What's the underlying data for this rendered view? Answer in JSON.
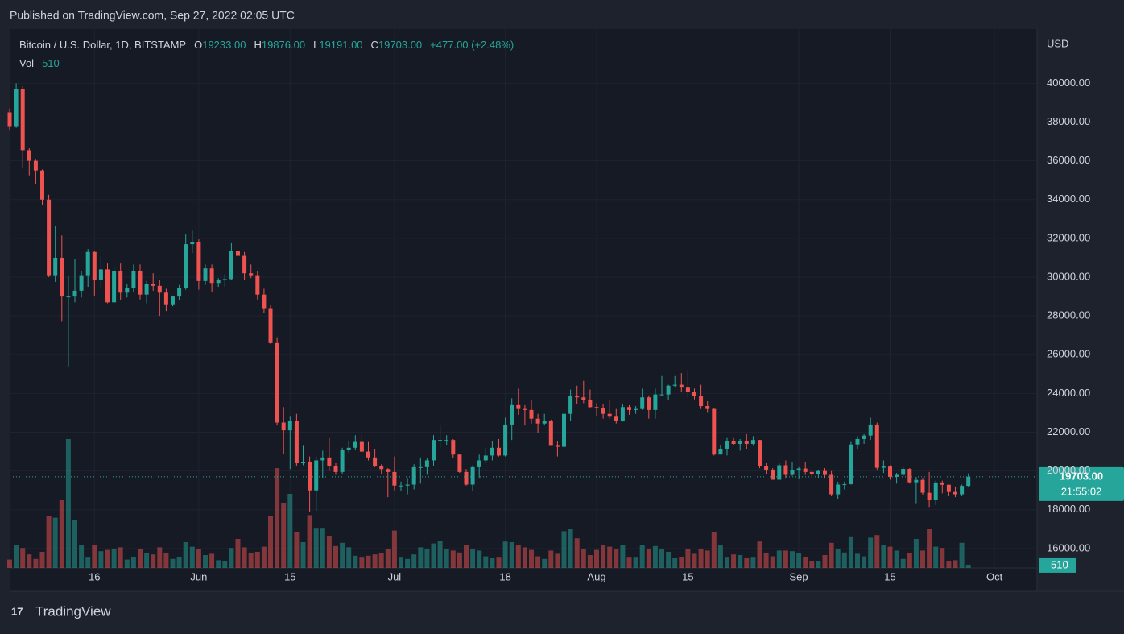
{
  "header": {
    "published": "Published on TradingView.com, Sep 27, 2022 02:05 UTC",
    "symbol": "Bitcoin / U.S. Dollar, 1D, BITSTAMP",
    "open_label": "O",
    "open": "19233.00",
    "high_label": "H",
    "high": "19876.00",
    "low_label": "L",
    "low": "19191.00",
    "close_label": "C",
    "close": "19703.00",
    "change": "+477.00 (+2.48%)",
    "vol_label": "Vol",
    "vol": "510"
  },
  "axis": {
    "currency": "USD",
    "price_tag": "19703.00",
    "countdown": "21:55:02",
    "volume_tag": "510"
  },
  "footer": {
    "brand": "TradingView"
  },
  "chart_data": {
    "type": "candlestick",
    "categories": [
      null,
      null,
      null,
      null,
      null,
      null,
      null,
      null,
      null,
      null,
      null,
      null,
      null,
      "16",
      null,
      null,
      null,
      null,
      null,
      null,
      null,
      null,
      null,
      null,
      null,
      null,
      null,
      null,
      null,
      "Jun",
      null,
      null,
      null,
      null,
      null,
      null,
      null,
      null,
      null,
      null,
      null,
      null,
      null,
      "15",
      null,
      null,
      null,
      null,
      null,
      null,
      null,
      null,
      null,
      null,
      null,
      null,
      null,
      null,
      null,
      "Jul",
      null,
      null,
      null,
      null,
      null,
      null,
      null,
      null,
      null,
      null,
      null,
      null,
      null,
      null,
      null,
      null,
      "18",
      null,
      null,
      null,
      null,
      null,
      null,
      null,
      null,
      null,
      null,
      null,
      null,
      null,
      "Aug",
      null,
      null,
      null,
      null,
      null,
      null,
      null,
      null,
      null,
      null,
      null,
      null,
      null,
      "15",
      null,
      null,
      null,
      null,
      null,
      null,
      null,
      null,
      null,
      null,
      null,
      null,
      null,
      null,
      null,
      null,
      "Sep",
      null,
      null,
      null,
      null,
      null,
      null,
      null,
      null,
      null,
      null,
      null,
      null,
      null,
      "15",
      null,
      null,
      null,
      null,
      null,
      null,
      null,
      null,
      null,
      null,
      null,
      null,
      null,
      null,
      null,
      "Oct"
    ],
    "open": [
      38500,
      37750,
      39700,
      36550,
      36000,
      35500,
      34000,
      30100,
      31000,
      29000,
      29000,
      29300,
      30100,
      31300,
      29850,
      30400,
      28700,
      30300,
      29200,
      29450,
      30300,
      29100,
      29650,
      29550,
      29200,
      28600,
      29000,
      29450,
      31700,
      31800,
      29800,
      30450,
      29700,
      29850,
      29900,
      31350,
      31100,
      30200,
      30100,
      29100,
      28400,
      26600,
      22500,
      22100,
      22600,
      20400,
      20450,
      19000,
      20550,
      20700,
      20250,
      19950,
      21100,
      21200,
      21500,
      21000,
      20700,
      20250,
      20100,
      19950,
      19250,
      19250,
      19300,
      20200,
      20200,
      20550,
      21600,
      21600,
      21600,
      20850,
      19950,
      19300,
      20200,
      20550,
      20800,
      21200,
      20800,
      22400,
      23400,
      23200,
      23150,
      22700,
      22450,
      22600,
      21300,
      21250,
      22950,
      23850,
      23800,
      23650,
      23300,
      23250,
      22950,
      22800,
      22600,
      23300,
      23150,
      23200,
      23800,
      23150,
      23950,
      23950,
      24400,
      24450,
      24300,
      24100,
      23850,
      23350,
      23200,
      20850,
      21150,
      21550,
      21400,
      21550,
      21400,
      21600,
      20250,
      20050,
      19550,
      20300,
      19800,
      20050,
      20130,
      19950,
      19830,
      20000,
      19800,
      18800,
      19300,
      19320,
      21370,
      21650,
      21830,
      22400,
      20170,
      20230,
      19700,
      19800,
      20110,
      19420,
      19540,
      18880,
      18490,
      19410,
      19290,
      18920,
      18800,
      19233,
      null,
      null,
      null,
      null
    ],
    "high": [
      38700,
      40000,
      39850,
      36650,
      36100,
      35550,
      34250,
      32650,
      32150,
      30050,
      30950,
      30300,
      31450,
      31350,
      31050,
      30700,
      30550,
      30700,
      29650,
      30650,
      30650,
      29800,
      30200,
      29850,
      29400,
      29050,
      29600,
      32200,
      32400,
      31950,
      30650,
      30650,
      29950,
      30150,
      31750,
      31550,
      31300,
      30650,
      30300,
      29400,
      28550,
      26900,
      23300,
      22800,
      22950,
      21300,
      20750,
      20750,
      21050,
      21700,
      20400,
      21200,
      21550,
      21850,
      21850,
      21500,
      21150,
      20350,
      20150,
      20750,
      19450,
      19650,
      20350,
      20700,
      20650,
      21850,
      22350,
      21850,
      21650,
      20850,
      20100,
      20300,
      20850,
      21200,
      21550,
      21650,
      22750,
      23750,
      24250,
      23400,
      23650,
      22950,
      22950,
      22650,
      21550,
      23100,
      24200,
      24400,
      24650,
      24200,
      23500,
      23450,
      23650,
      23200,
      23450,
      23400,
      23350,
      24250,
      23900,
      24250,
      24900,
      24450,
      24900,
      25050,
      25200,
      24250,
      24450,
      23600,
      23250,
      21350,
      21700,
      21700,
      21650,
      21900,
      21800,
      21600,
      20400,
      20150,
      20400,
      20550,
      20450,
      20200,
      20450,
      20000,
      20050,
      20150,
      20000,
      19450,
      19450,
      21500,
      21800,
      21900,
      22750,
      22500,
      20550,
      20300,
      19900,
      20200,
      20150,
      19700,
      19650,
      19950,
      19500,
      19500,
      19300,
      19200,
      19300,
      19876,
      null,
      null,
      null,
      null
    ],
    "low": [
      37600,
      37700,
      35600,
      35250,
      34800,
      33700,
      30000,
      29750,
      27700,
      25400,
      28700,
      28950,
      29500,
      29050,
      29450,
      28650,
      28650,
      28800,
      28950,
      29250,
      28850,
      28650,
      29300,
      28000,
      28250,
      28500,
      28800,
      29350,
      31250,
      29350,
      29600,
      29250,
      29500,
      29500,
      29850,
      29250,
      29850,
      29950,
      28850,
      28150,
      26550,
      22350,
      20900,
      20100,
      20250,
      20300,
      17900,
      17950,
      19650,
      20000,
      19800,
      19850,
      20950,
      21100,
      20950,
      20550,
      20200,
      19850,
      18650,
      19000,
      18950,
      18800,
      19050,
      19350,
      19800,
      20250,
      21200,
      21350,
      20650,
      19900,
      19250,
      18950,
      19650,
      20400,
      20550,
      20750,
      20750,
      21600,
      22900,
      22350,
      22450,
      21950,
      22350,
      21300,
      20750,
      21050,
      22600,
      23450,
      23500,
      23250,
      22850,
      22700,
      22700,
      22450,
      22550,
      22900,
      22950,
      23150,
      22700,
      22700,
      23900,
      23650,
      24300,
      24100,
      23800,
      23700,
      23200,
      23000,
      20800,
      20850,
      20800,
      21350,
      21050,
      21150,
      21300,
      20150,
      19850,
      19550,
      19550,
      19650,
      19750,
      19600,
      19800,
      19650,
      19650,
      19650,
      18700,
      18550,
      19050,
      19300,
      21150,
      21400,
      21600,
      20050,
      19900,
      19550,
      19350,
      19750,
      19350,
      18300,
      18750,
      18150,
      18250,
      18850,
      18700,
      18650,
      18700,
      19191,
      null,
      null,
      null,
      null
    ],
    "close": [
      37750,
      39700,
      36550,
      36000,
      35500,
      34000,
      30100,
      31000,
      29000,
      29000,
      29300,
      30100,
      31300,
      29850,
      30400,
      28700,
      30300,
      29200,
      29450,
      30300,
      29100,
      29650,
      29550,
      29200,
      28600,
      29000,
      29450,
      31700,
      31800,
      29800,
      30450,
      29700,
      29850,
      29900,
      31350,
      31100,
      30200,
      30100,
      29100,
      28400,
      26600,
      22500,
      22100,
      22600,
      20400,
      20450,
      19000,
      20550,
      20700,
      20250,
      19950,
      21100,
      21200,
      21500,
      21000,
      20700,
      20250,
      20100,
      19950,
      19250,
      19250,
      19300,
      20200,
      20200,
      20550,
      21600,
      21600,
      21600,
      20850,
      19950,
      19300,
      20200,
      20550,
      20800,
      21200,
      20800,
      22400,
      23400,
      23200,
      23150,
      22700,
      22450,
      22600,
      21300,
      21250,
      22950,
      23850,
      23800,
      23650,
      23300,
      23250,
      22950,
      22800,
      22600,
      23300,
      23150,
      23200,
      23800,
      23150,
      23950,
      23950,
      24400,
      24450,
      24300,
      24100,
      23850,
      23350,
      23200,
      20850,
      21150,
      21550,
      21400,
      21550,
      21400,
      21600,
      20250,
      20050,
      19550,
      20300,
      19800,
      20050,
      20130,
      19950,
      19830,
      20000,
      19800,
      18800,
      19300,
      19320,
      21370,
      21650,
      21830,
      22400,
      20170,
      20230,
      19700,
      19800,
      20110,
      19420,
      19540,
      18880,
      18490,
      19410,
      19290,
      18920,
      18800,
      19233,
      19703,
      null,
      null,
      null,
      null
    ],
    "volume": [
      1300,
      3500,
      3100,
      2100,
      1400,
      2500,
      8000,
      7800,
      10500,
      20000,
      7500,
      3500,
      1600,
      3500,
      2600,
      2800,
      3000,
      3200,
      1300,
      1700,
      3000,
      2300,
      2100,
      3200,
      2300,
      1400,
      1700,
      4000,
      3300,
      3000,
      2000,
      2200,
      1200,
      1100,
      3100,
      4500,
      3200,
      2300,
      2500,
      3300,
      8000,
      15500,
      10000,
      11500,
      5600,
      4000,
      8200,
      6100,
      6100,
      5000,
      3400,
      3900,
      3200,
      1900,
      1600,
      1900,
      2100,
      2300,
      2900,
      5800,
      1600,
      1400,
      2100,
      3200,
      3000,
      3800,
      4200,
      3000,
      2700,
      2400,
      3600,
      3000,
      2700,
      1800,
      1500,
      1600,
      4100,
      4000,
      3500,
      3200,
      2800,
      1800,
      1400,
      2700,
      2200,
      5700,
      6000,
      4600,
      3000,
      2000,
      2800,
      3600,
      3300,
      3000,
      3600,
      1600,
      1600,
      3500,
      2900,
      3400,
      3000,
      2500,
      1500,
      1700,
      3000,
      2200,
      3000,
      2700,
      5600,
      3500,
      1600,
      2100,
      2000,
      1500,
      1600,
      4100,
      2300,
      1800,
      2700,
      2700,
      2600,
      2300,
      1700,
      1100,
      1100,
      2000,
      3900,
      3000,
      2400,
      4900,
      2200,
      1800,
      4700,
      5100,
      3600,
      3300,
      2700,
      1400,
      2300,
      4500,
      2700,
      6000,
      3300,
      3100,
      1000,
      1200,
      3900,
      510,
      null,
      null,
      null,
      null
    ],
    "ylim": [
      15000,
      42800
    ],
    "yticks": [
      {
        "value": 16000,
        "label": "16000.00"
      },
      {
        "value": 18000,
        "label": "18000.00"
      },
      {
        "value": 20000,
        "label": "20000.00"
      },
      {
        "value": 22000,
        "label": "22000.00"
      },
      {
        "value": 24000,
        "label": "24000.00"
      },
      {
        "value": 26000,
        "label": "26000.00"
      },
      {
        "value": 28000,
        "label": "28000.00"
      },
      {
        "value": 30000,
        "label": "30000.00"
      },
      {
        "value": 32000,
        "label": "32000.00"
      },
      {
        "value": 34000,
        "label": "34000.00"
      },
      {
        "value": 36000,
        "label": "36000.00"
      },
      {
        "value": 38000,
        "label": "38000.00"
      },
      {
        "value": 40000,
        "label": "40000.00"
      }
    ],
    "volume_ylim": [
      0,
      25000
    ],
    "up_color": "#26a69a",
    "down_color": "#ef5350",
    "grid": true
  }
}
